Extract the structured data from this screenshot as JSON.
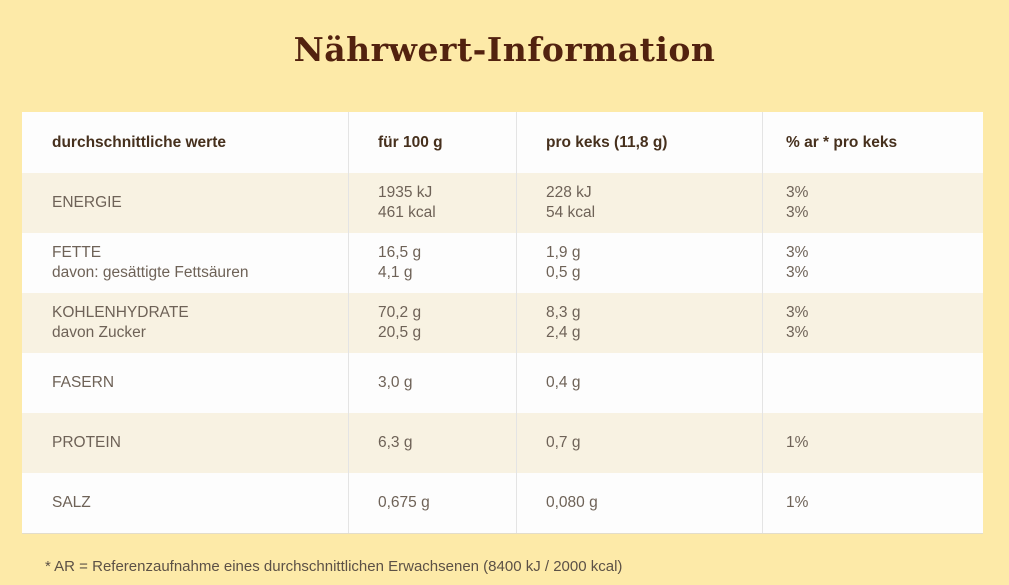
{
  "page": {
    "title": "Nährwert-Information",
    "footnote": "* AR = Referenzaufnahme eines durchschnittlichen Erwachsenen (8400 kJ / 2000 kcal)",
    "colors": {
      "background": "#fdeaa8",
      "title_text": "#52220f",
      "header_text": "#46301d",
      "row_text": "#6e6257",
      "row_background_white": "#fdfdfd",
      "row_background_beige": "#f8f2e2",
      "column_divider": "#e4e4e4"
    }
  },
  "table": {
    "headers": [
      "durchschnittliche werte",
      "für 100 g",
      "pro keks (11,8 g)",
      "% ar * pro keks"
    ],
    "rows": [
      {
        "cells": [
          [
            "ENERGIE"
          ],
          [
            "1935 kJ",
            "461 kcal"
          ],
          [
            "228 kJ",
            "54 kcal"
          ],
          [
            "3%",
            "3%"
          ]
        ]
      },
      {
        "cells": [
          [
            "FETTE",
            "davon: gesättigte Fettsäuren"
          ],
          [
            "16,5 g",
            "4,1 g"
          ],
          [
            "1,9 g",
            "0,5 g"
          ],
          [
            "3%",
            "3%"
          ]
        ]
      },
      {
        "cells": [
          [
            "KOHLENHYDRATE",
            "davon Zucker"
          ],
          [
            "70,2 g",
            "20,5 g"
          ],
          [
            "8,3 g",
            "2,4 g"
          ],
          [
            "3%",
            "3%"
          ]
        ]
      },
      {
        "cells": [
          [
            "FASERN"
          ],
          [
            "3,0 g"
          ],
          [
            "0,4 g"
          ],
          []
        ]
      },
      {
        "cells": [
          [
            "PROTEIN"
          ],
          [
            "6,3 g"
          ],
          [
            "0,7 g"
          ],
          [
            "1%"
          ]
        ]
      },
      {
        "cells": [
          [
            "SALZ"
          ],
          [
            "0,675 g"
          ],
          [
            "0,080 g"
          ],
          [
            "1%"
          ]
        ]
      }
    ]
  }
}
